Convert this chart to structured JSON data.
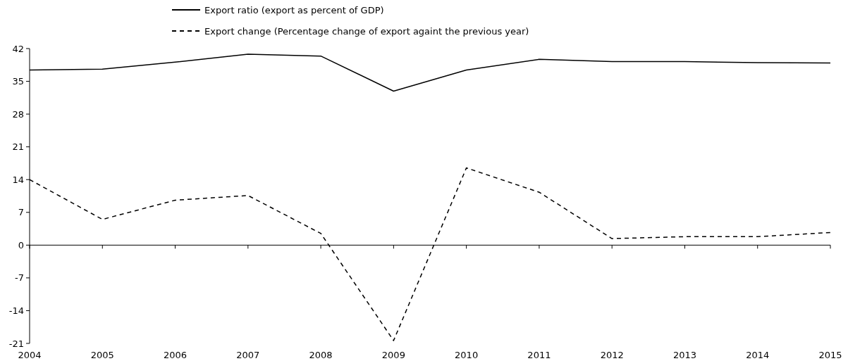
{
  "chart_data": {
    "type": "line",
    "categories": [
      "2004",
      "2005",
      "2006",
      "2007",
      "2008",
      "2009",
      "2010",
      "2011",
      "2012",
      "2013",
      "2014",
      "2015"
    ],
    "series": [
      {
        "name": "Export ratio (export as percent of GDP)",
        "color": "#000000",
        "line_style": "solid",
        "values": [
          37.4,
          37.6,
          39.1,
          40.8,
          40.4,
          32.9,
          37.4,
          39.7,
          39.2,
          39.2,
          39.0,
          38.9
        ]
      },
      {
        "name": "Export change (Percentage change of export againt the previous year)",
        "color": "#000000",
        "line_style": "dashed",
        "values": [
          14.0,
          5.5,
          9.6,
          10.6,
          2.5,
          -20.4,
          16.5,
          11.3,
          1.4,
          1.8,
          1.8,
          2.7
        ]
      }
    ],
    "ylim": [
      -21,
      42
    ],
    "yticks": [
      -21,
      -14,
      -7,
      0,
      7,
      14,
      21,
      28,
      35,
      42
    ],
    "legend": "top",
    "marker": "none"
  }
}
